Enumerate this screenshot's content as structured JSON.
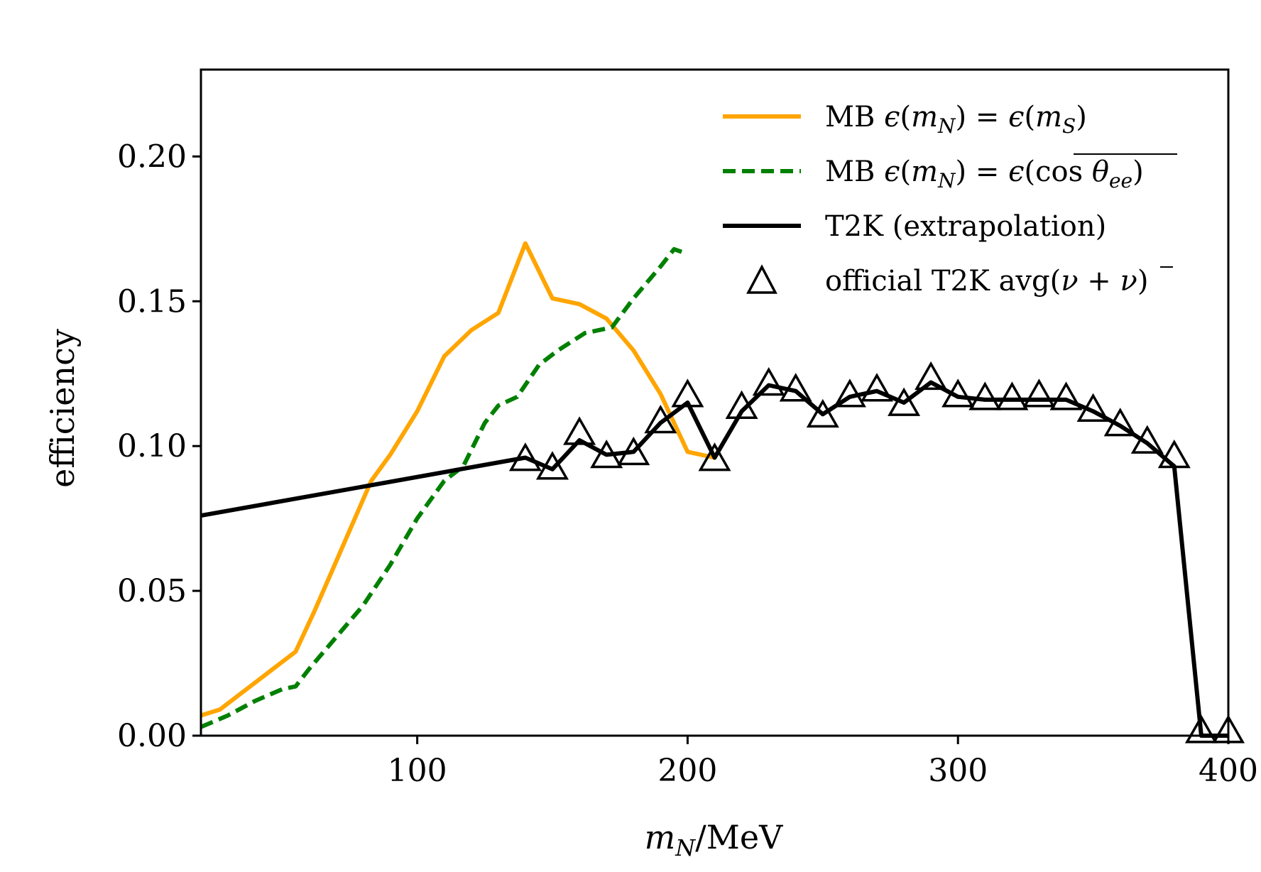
{
  "chart_data": {
    "type": "line",
    "title": "",
    "xlabel": "mN/MeV",
    "ylabel": "efficiency",
    "xlim": [
      20,
      400
    ],
    "ylim": [
      0,
      0.23
    ],
    "xticks": [
      100,
      200,
      300,
      400
    ],
    "xtick_labels": [
      "100",
      "200",
      "300",
      "400"
    ],
    "yticks": [
      0.0,
      0.05,
      0.1,
      0.15,
      0.2
    ],
    "ytick_labels": [
      "0.00",
      "0.05",
      "0.10",
      "0.15",
      "0.20"
    ],
    "grid": false,
    "legend_position": "top-right",
    "series": [
      {
        "name": "MB ϵ(mN) = ϵ(mS)",
        "style": "solid",
        "color": "#FFA500",
        "marker": "none",
        "x": [
          20,
          27,
          34,
          41,
          48,
          55,
          62,
          69,
          76,
          83,
          90,
          100,
          110,
          120,
          130,
          140,
          150,
          160,
          170,
          180,
          190,
          200,
          210
        ],
        "y": [
          0.007,
          0.009,
          0.014,
          0.019,
          0.024,
          0.029,
          0.043,
          0.058,
          0.073,
          0.088,
          0.097,
          0.112,
          0.131,
          0.14,
          0.146,
          0.17,
          0.151,
          0.149,
          0.144,
          0.133,
          0.118,
          0.098,
          0.096
        ]
      },
      {
        "name": "MB ϵ(mN) = ϵ(cos θee)",
        "style": "dashed",
        "color": "#008000",
        "marker": "none",
        "x": [
          20,
          30,
          40,
          50,
          55,
          60,
          70,
          80,
          90,
          100,
          110,
          117,
          125,
          130,
          137,
          145,
          152,
          162,
          172,
          180,
          190,
          195,
          198
        ],
        "y": [
          0.003,
          0.007,
          0.012,
          0.016,
          0.017,
          0.023,
          0.034,
          0.045,
          0.059,
          0.075,
          0.088,
          0.093,
          0.108,
          0.114,
          0.117,
          0.128,
          0.133,
          0.139,
          0.141,
          0.151,
          0.162,
          0.168,
          0.167
        ]
      },
      {
        "name": "T2K (extrapolation)",
        "style": "solid",
        "color": "#000000",
        "marker": "none",
        "x": [
          20,
          140,
          150,
          160,
          170,
          180,
          190,
          200,
          210,
          220,
          230,
          240,
          250,
          260,
          270,
          280,
          290,
          300,
          310,
          320,
          330,
          340,
          350,
          360,
          370,
          380,
          390,
          400
        ],
        "y": [
          0.076,
          0.096,
          0.092,
          0.102,
          0.097,
          0.098,
          0.108,
          0.115,
          0.096,
          0.112,
          0.121,
          0.119,
          0.111,
          0.117,
          0.119,
          0.115,
          0.122,
          0.117,
          0.116,
          0.116,
          0.116,
          0.116,
          0.112,
          0.107,
          0.101,
          0.093,
          0.0,
          0.0
        ]
      },
      {
        "name": "official T2K avg(ν + ν̄)",
        "style": "none",
        "color": "#000000",
        "marker": "triangle-open",
        "x": [
          140,
          150,
          160,
          170,
          180,
          190,
          200,
          210,
          220,
          230,
          240,
          250,
          260,
          270,
          280,
          290,
          300,
          310,
          320,
          330,
          340,
          350,
          360,
          370,
          380,
          390,
          400
        ],
        "y": [
          0.095,
          0.092,
          0.104,
          0.096,
          0.097,
          0.108,
          0.117,
          0.095,
          0.113,
          0.121,
          0.119,
          0.11,
          0.117,
          0.119,
          0.114,
          0.123,
          0.117,
          0.116,
          0.116,
          0.117,
          0.116,
          0.112,
          0.107,
          0.101,
          0.096,
          0.001,
          0.001
        ]
      }
    ]
  }
}
